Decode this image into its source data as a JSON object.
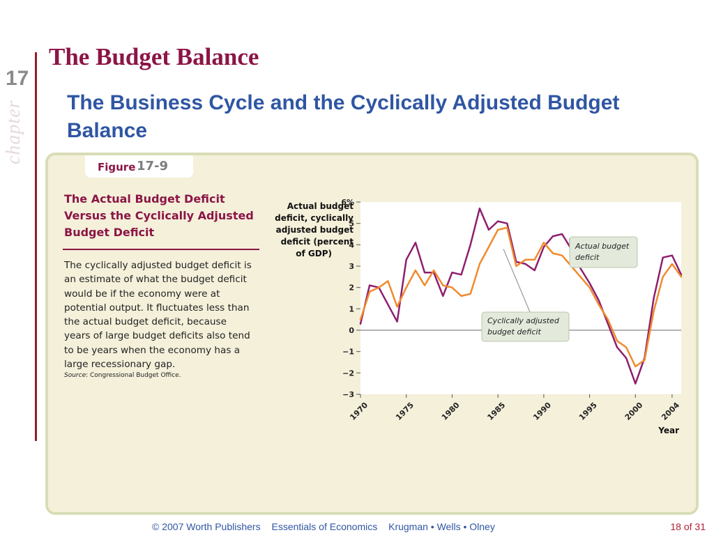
{
  "slide": {
    "chapter_number": "17",
    "chapter_word": "chapter",
    "title": "The Budget Balance",
    "subtitle": "The Business Cycle and the Cyclically Adjusted Budget Balance"
  },
  "figure": {
    "label": "Figure",
    "number": "17-9",
    "caption_title": "The Actual Budget Deficit Versus the Cyclically Adjusted Budget Deficit",
    "caption_body": "The cyclically adjusted budget deficit is an estimate of what the budget deficit would be if the economy were at potential output. It fluctuates less than the actual budget deficit, because years of large budget deficits also tend to be years when the economy has a large recessionary gap.",
    "source_label": "Source",
    "source_text": ": Congressional Budget Office."
  },
  "chart_data": {
    "type": "line",
    "ylabel": "Actual budget deficit, cyclically adjusted budget deficit (percent of GDP)",
    "xlabel": "Year",
    "ylim": [
      -3,
      6
    ],
    "xlim": [
      1970,
      2005
    ],
    "yticks": [
      "6%",
      "5",
      "4",
      "3",
      "2",
      "1",
      "0",
      "−1",
      "−2",
      "−3"
    ],
    "ytick_values": [
      6,
      5,
      4,
      3,
      2,
      1,
      0,
      -1,
      -2,
      -3
    ],
    "xticks": [
      "1970",
      "1975",
      "1980",
      "1985",
      "1990",
      "1995",
      "2000",
      "2004"
    ],
    "xtick_values": [
      1970,
      1975,
      1980,
      1985,
      1990,
      1995,
      2000,
      2004
    ],
    "grid": false,
    "zero_line": true,
    "series": [
      {
        "name": "Actual budget deficit",
        "color": "#8e1f6e",
        "x": [
          1970,
          1971,
          1972,
          1973,
          1974,
          1975,
          1976,
          1977,
          1978,
          1979,
          1980,
          1981,
          1982,
          1983,
          1984,
          1985,
          1986,
          1987,
          1988,
          1989,
          1990,
          1991,
          1992,
          1993,
          1994,
          1995,
          1996,
          1997,
          1998,
          1999,
          2000,
          2001,
          2002,
          2003,
          2004,
          2005
        ],
        "y": [
          0.3,
          2.1,
          2.0,
          1.2,
          0.4,
          3.3,
          4.1,
          2.7,
          2.7,
          1.6,
          2.7,
          2.6,
          4.0,
          5.7,
          4.7,
          5.1,
          5.0,
          3.2,
          3.1,
          2.8,
          3.9,
          4.4,
          4.5,
          3.8,
          2.9,
          2.2,
          1.4,
          0.3,
          -0.8,
          -1.3,
          -2.5,
          -1.3,
          1.5,
          3.4,
          3.5,
          2.6
        ]
      },
      {
        "name": "Cyclically adjusted budget deficit",
        "color": "#f08a2c",
        "x": [
          1970,
          1971,
          1972,
          1973,
          1974,
          1975,
          1976,
          1977,
          1978,
          1979,
          1980,
          1981,
          1982,
          1983,
          1984,
          1985,
          1986,
          1987,
          1988,
          1989,
          1990,
          1991,
          1992,
          1993,
          1994,
          1995,
          1996,
          1997,
          1998,
          1999,
          2000,
          2001,
          2002,
          2003,
          2004,
          2005
        ],
        "y": [
          0.5,
          1.8,
          2.0,
          2.3,
          1.1,
          2.0,
          2.8,
          2.1,
          2.8,
          2.1,
          2.0,
          1.6,
          1.7,
          3.1,
          3.9,
          4.7,
          4.8,
          3.0,
          3.3,
          3.3,
          4.1,
          3.6,
          3.5,
          3.0,
          2.5,
          2.0,
          1.2,
          0.5,
          -0.5,
          -0.8,
          -1.7,
          -1.4,
          0.9,
          2.5,
          3.1,
          2.5
        ]
      }
    ],
    "annotations": [
      {
        "text": "Actual budget deficit",
        "series": 0
      },
      {
        "text": "Cyclically adjusted budget deficit",
        "series": 1
      }
    ]
  },
  "footer": {
    "copyright": "© 2007 Worth Publishers",
    "book": "Essentials of Economics",
    "authors": "Krugman • Wells • Olney",
    "page": "18 of 31"
  }
}
